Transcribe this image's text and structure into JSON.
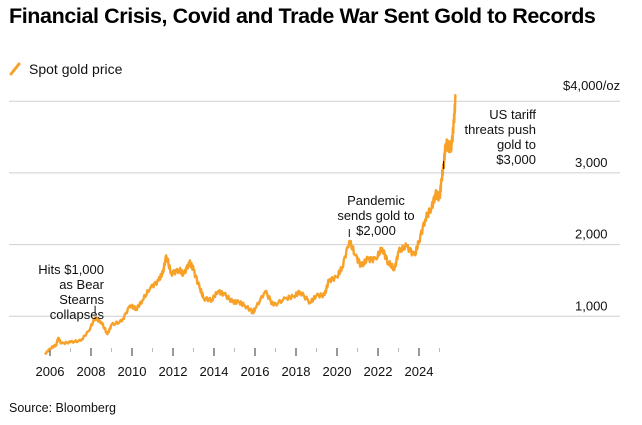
{
  "chart_data": {
    "type": "line",
    "title": "Financial Crisis, Covid and Trade War Sent Gold to Records",
    "legend": [
      {
        "label": "Spot gold price",
        "color": "#f7a128"
      }
    ],
    "legend_placement": "top-left",
    "xlabel": "",
    "ylabel": "",
    "source": "Source: Bloomberg",
    "xlim": [
      2005.5,
      2026
    ],
    "ylim": [
      0,
      4000
    ],
    "x_ticks": [
      2006,
      2008,
      2010,
      2012,
      2014,
      2016,
      2018,
      2020,
      2022,
      2024
    ],
    "x_tick_labels": [
      "2006",
      "2008",
      "2010",
      "2012",
      "2014",
      "2016",
      "2018",
      "2020",
      "2022",
      "2024"
    ],
    "y_ticks": [
      1000,
      2000,
      3000,
      4000
    ],
    "y_tick_labels": [
      "1,000",
      "2,000",
      "3,000",
      "$4,000/oz"
    ],
    "grid": true,
    "series": [
      {
        "name": "Spot gold price",
        "color": "#f7a128",
        "x": [
          2005.75,
          2006.0,
          2006.3,
          2006.4,
          2006.55,
          2007.0,
          2007.5,
          2007.9,
          2008.2,
          2008.5,
          2008.8,
          2009.0,
          2009.5,
          2009.9,
          2010.2,
          2010.5,
          2010.9,
          2011.3,
          2011.5,
          2011.67,
          2011.9,
          2012.3,
          2012.5,
          2012.8,
          2013.0,
          2013.3,
          2013.5,
          2013.9,
          2014.2,
          2014.5,
          2014.9,
          2015.2,
          2015.5,
          2015.9,
          2016.0,
          2016.5,
          2016.9,
          2017.5,
          2017.9,
          2018.2,
          2018.7,
          2019.0,
          2019.4,
          2019.6,
          2020.0,
          2020.25,
          2020.6,
          2020.9,
          2021.2,
          2021.5,
          2021.9,
          2022.2,
          2022.5,
          2022.8,
          2023.0,
          2023.4,
          2023.8,
          2024.0,
          2024.3,
          2024.6,
          2024.8,
          2025.0,
          2025.1,
          2025.2,
          2025.3,
          2025.5,
          2025.6,
          2025.7,
          2025.78
        ],
        "y": [
          470,
          550,
          600,
          700,
          620,
          640,
          660,
          800,
          980,
          920,
          750,
          880,
          930,
          1150,
          1100,
          1220,
          1400,
          1500,
          1600,
          1850,
          1600,
          1650,
          1580,
          1750,
          1650,
          1400,
          1250,
          1230,
          1350,
          1310,
          1200,
          1200,
          1150,
          1060,
          1100,
          1350,
          1150,
          1250,
          1280,
          1340,
          1190,
          1290,
          1300,
          1500,
          1550,
          1680,
          2050,
          1850,
          1700,
          1800,
          1800,
          1950,
          1750,
          1650,
          1900,
          1980,
          1850,
          2050,
          2350,
          2500,
          2700,
          2650,
          2900,
          3100,
          3400,
          3350,
          3400,
          3700,
          4050
        ]
      }
    ],
    "annotations": [
      {
        "text": [
          "Hits $1,000",
          "as Bear",
          "Stearns",
          "collapses"
        ],
        "x": 2008.2,
        "y": 980
      },
      {
        "text": [
          "Pandemic",
          "sends gold to",
          "$2,000"
        ],
        "x": 2020.6,
        "y": 2050
      },
      {
        "text": [
          "US tariff",
          "threats push",
          "gold to",
          "$3,000"
        ],
        "x": 2025.2,
        "y": 3000
      }
    ]
  }
}
